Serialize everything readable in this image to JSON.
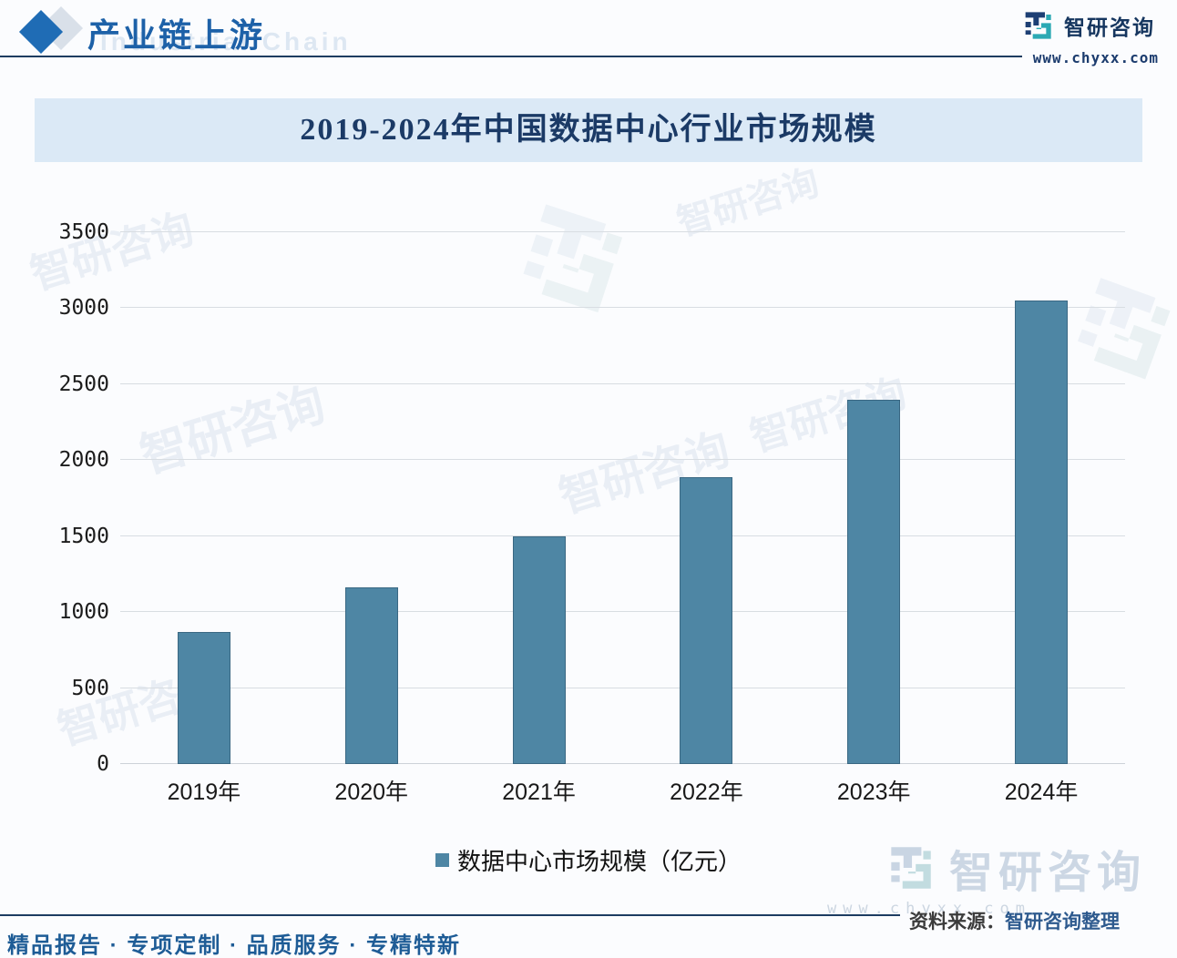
{
  "header": {
    "title": "产业链上游",
    "watermark": "Industrial Chain",
    "brand": {
      "name": "智研咨询",
      "site": "www.chyxx.com"
    }
  },
  "chart": {
    "title": "2019-2024年中国数据中心行业市场规模",
    "legend_label": "数据中心市场规模（亿元）",
    "source_label": "资料来源：",
    "source_value": "智研咨询整理"
  },
  "chart_data": {
    "type": "bar",
    "title": "2019-2024年中国数据中心行业市场规模",
    "categories": [
      "2019年",
      "2020年",
      "2021年",
      "2022年",
      "2023年",
      "2024年"
    ],
    "series": [
      {
        "name": "数据中心市场规模（亿元）",
        "values": [
          870,
          1165,
          1500,
          1890,
          2400,
          3050
        ]
      }
    ],
    "xlabel": "",
    "ylabel": "",
    "ylim": [
      0,
      3500
    ],
    "yticks": [
      0,
      500,
      1000,
      1500,
      2000,
      2500,
      3000,
      3500
    ],
    "grid": true,
    "legend_position": "bottom",
    "bar_color": "#4e86a4"
  },
  "footer": {
    "tagline": "精品报告 · 专项定制 · 品质服务 · 专精特新"
  },
  "colors": {
    "accent_blue": "#1f6cb5",
    "navy": "#1c3c61",
    "title_band_bg": "#dbe9f6",
    "bar": "#4e86a4",
    "logo_teal": "#2ba9b4",
    "logo_navy": "#1d3f74"
  }
}
